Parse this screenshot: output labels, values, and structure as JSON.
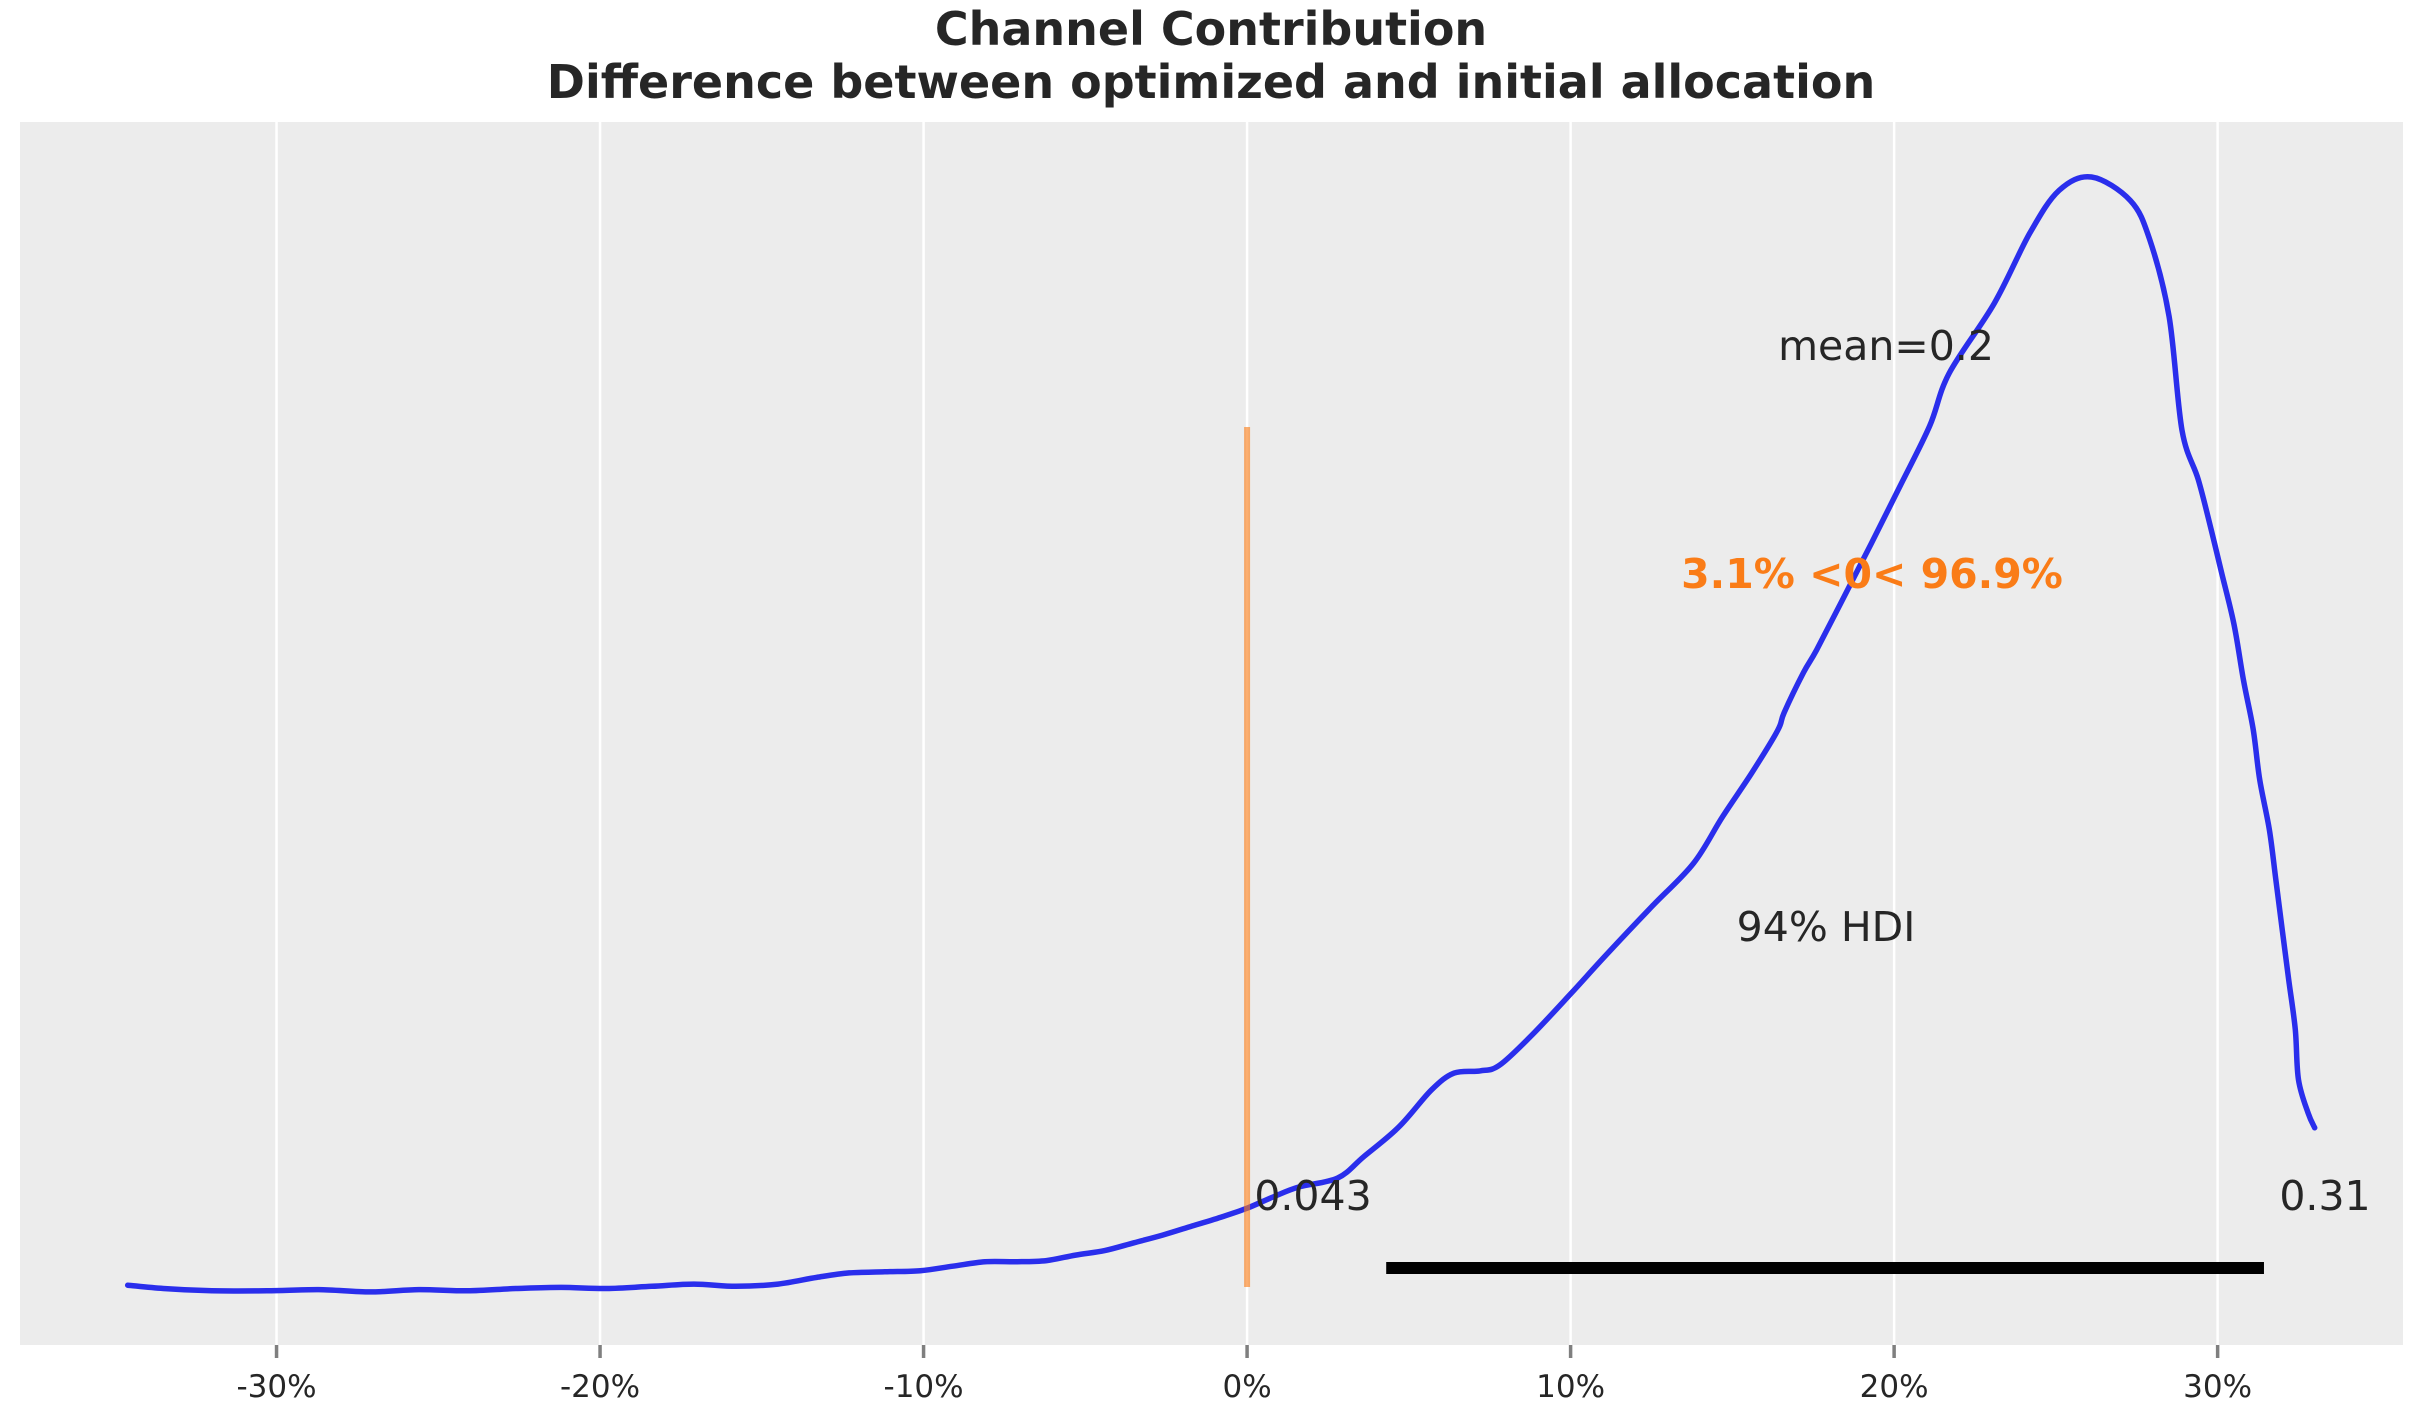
{
  "title": {
    "line1": "Channel Contribution",
    "line2": "Difference between optimized and initial allocation"
  },
  "chart_data": {
    "type": "line",
    "subtype": "posterior-kde",
    "title": "Channel Contribution",
    "subtitle": "Difference between optimized and initial allocation",
    "xlabel": "",
    "ylabel": "",
    "grid": "vertical-white-lines",
    "legend": "none",
    "xlim_pct": [
      -37.93,
      35.73
    ],
    "ylim_density": [
      -0.0466,
      1.0493
    ],
    "x_ticks": [
      {
        "value": -30,
        "label": "-30%"
      },
      {
        "value": -20,
        "label": "-20%"
      },
      {
        "value": -10,
        "label": "-10%"
      },
      {
        "value": 0,
        "label": "0%"
      },
      {
        "value": 10,
        "label": "10%"
      },
      {
        "value": 20,
        "label": "20%"
      },
      {
        "value": 30,
        "label": "30%"
      }
    ],
    "mean": {
      "value": 0.2,
      "label": "mean=0.2"
    },
    "ref_val": {
      "value": 0,
      "label": "3.1% <0< 96.9%",
      "pct_below": "3.1%",
      "pct_above": "96.9%"
    },
    "hdi": {
      "prob": "94%",
      "label": "94% HDI",
      "lower": 0.043,
      "upper": 0.31,
      "lower_label": "0.043",
      "upper_label": "0.31"
    },
    "series": [
      {
        "name": "posterior_kde",
        "x_unit": "percent",
        "y_unit": "normalized_density",
        "points": [
          [
            -34.6,
            0.007
          ],
          [
            -33.5,
            0.004
          ],
          [
            -32.0,
            0.002
          ],
          [
            -30.3,
            0.002
          ],
          [
            -28.7,
            0.003
          ],
          [
            -27.1,
            0.001
          ],
          [
            -25.6,
            0.003
          ],
          [
            -24.1,
            0.002
          ],
          [
            -22.6,
            0.004
          ],
          [
            -21.2,
            0.005
          ],
          [
            -19.8,
            0.004
          ],
          [
            -18.4,
            0.006
          ],
          [
            -17.1,
            0.008
          ],
          [
            -15.8,
            0.006
          ],
          [
            -14.5,
            0.008
          ],
          [
            -13.3,
            0.014
          ],
          [
            -12.3,
            0.018
          ],
          [
            -11.2,
            0.019
          ],
          [
            -10.1,
            0.02
          ],
          [
            -9.1,
            0.024
          ],
          [
            -8.1,
            0.028
          ],
          [
            -7.1,
            0.028
          ],
          [
            -6.2,
            0.029
          ],
          [
            -5.3,
            0.034
          ],
          [
            -4.4,
            0.038
          ],
          [
            -3.5,
            0.045
          ],
          [
            -2.6,
            0.052
          ],
          [
            -1.7,
            0.06
          ],
          [
            -0.8,
            0.068
          ],
          [
            0.0,
            0.076
          ],
          [
            0.8,
            0.086
          ],
          [
            1.6,
            0.095
          ],
          [
            2.8,
            0.103
          ],
          [
            3.6,
            0.122
          ],
          [
            4.7,
            0.149
          ],
          [
            5.7,
            0.182
          ],
          [
            6.4,
            0.197
          ],
          [
            7.2,
            0.199
          ],
          [
            7.8,
            0.204
          ],
          [
            8.8,
            0.231
          ],
          [
            10.0,
            0.268
          ],
          [
            11.1,
            0.303
          ],
          [
            12.5,
            0.346
          ],
          [
            13.8,
            0.385
          ],
          [
            14.7,
            0.427
          ],
          [
            15.6,
            0.466
          ],
          [
            16.4,
            0.504
          ],
          [
            16.6,
            0.52
          ],
          [
            17.2,
            0.556
          ],
          [
            17.6,
            0.576
          ],
          [
            18.4,
            0.621
          ],
          [
            19.3,
            0.672
          ],
          [
            20.2,
            0.724
          ],
          [
            21.1,
            0.777
          ],
          [
            21.7,
            0.824
          ],
          [
            23.1,
            0.887
          ],
          [
            24.2,
            0.95
          ],
          [
            25.1,
            0.988
          ],
          [
            26.1,
            1.0
          ],
          [
            27.3,
            0.979
          ],
          [
            27.9,
            0.944
          ],
          [
            28.5,
            0.875
          ],
          [
            28.9,
            0.773
          ],
          [
            29.4,
            0.729
          ],
          [
            29.8,
            0.684
          ],
          [
            30.1,
            0.648
          ],
          [
            30.5,
            0.6
          ],
          [
            30.8,
            0.549
          ],
          [
            31.1,
            0.505
          ],
          [
            31.3,
            0.46
          ],
          [
            31.6,
            0.415
          ],
          [
            31.8,
            0.37
          ],
          [
            32.0,
            0.325
          ],
          [
            32.2,
            0.28
          ],
          [
            32.4,
            0.236
          ],
          [
            32.5,
            0.191
          ],
          [
            32.8,
            0.161
          ],
          [
            33.0,
            0.148
          ]
        ]
      }
    ],
    "colors": {
      "curve": "#2a2eec",
      "ref_line": "#fa7c17",
      "ref_text": "#fa7c17",
      "hdi_bar": "#000000",
      "plot_bg": "#ececec",
      "grid": "#ffffff",
      "text": "#262626",
      "tick_mark": "#7f7f7f"
    }
  }
}
